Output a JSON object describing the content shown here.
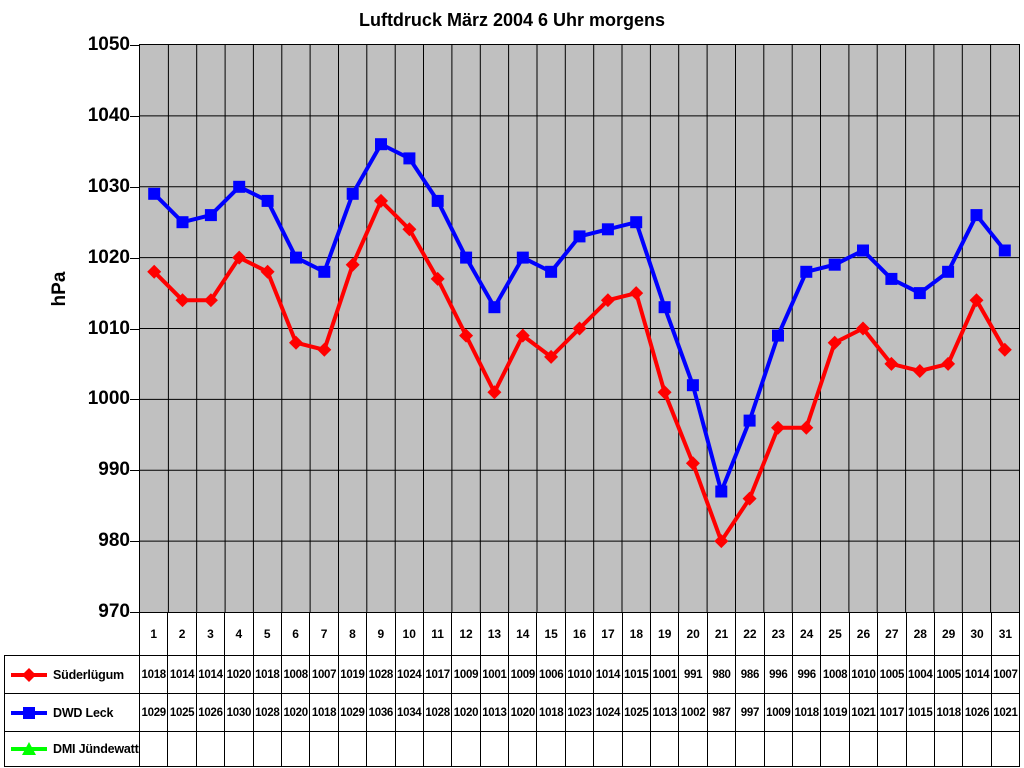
{
  "title": "Luftdruck März 2004 6 Uhr morgens",
  "chart_data": {
    "type": "line",
    "title": "Luftdruck März 2004 6 Uhr morgens",
    "xlabel": "",
    "ylabel": "hPa",
    "ylim": [
      970,
      1050
    ],
    "yticks": [
      1050,
      1040,
      1030,
      1020,
      1010,
      1000,
      990,
      980,
      970
    ],
    "grid": true,
    "grid_color": "#000000",
    "plot_background": "#c0c0c0",
    "legend_position": "bottom-left-table",
    "categories": [
      1,
      2,
      3,
      4,
      5,
      6,
      7,
      8,
      9,
      10,
      11,
      12,
      13,
      14,
      15,
      16,
      17,
      18,
      19,
      20,
      21,
      22,
      23,
      24,
      25,
      26,
      27,
      28,
      29,
      30,
      31
    ],
    "series": [
      {
        "name": "Süderlügum",
        "color": "#ff0000",
        "marker": "diamond",
        "values": [
          1018,
          1014,
          1014,
          1020,
          1018,
          1008,
          1007,
          1019,
          1028,
          1024,
          1017,
          1009,
          1001,
          1009,
          1006,
          1010,
          1014,
          1015,
          1001,
          991,
          980,
          986,
          996,
          996,
          1008,
          1010,
          1005,
          1004,
          1005,
          1014,
          1007
        ]
      },
      {
        "name": "DWD Leck",
        "color": "#0000ff",
        "marker": "square",
        "values": [
          1029,
          1025,
          1026,
          1030,
          1028,
          1020,
          1018,
          1029,
          1036,
          1034,
          1028,
          1020,
          1013,
          1020,
          1018,
          1023,
          1024,
          1025,
          1013,
          1002,
          987,
          997,
          1009,
          1018,
          1019,
          1021,
          1017,
          1015,
          1018,
          1026,
          1021
        ]
      },
      {
        "name": "DMI Jündewatt",
        "color": "#00ff00",
        "marker": "triangle",
        "values": []
      }
    ]
  }
}
